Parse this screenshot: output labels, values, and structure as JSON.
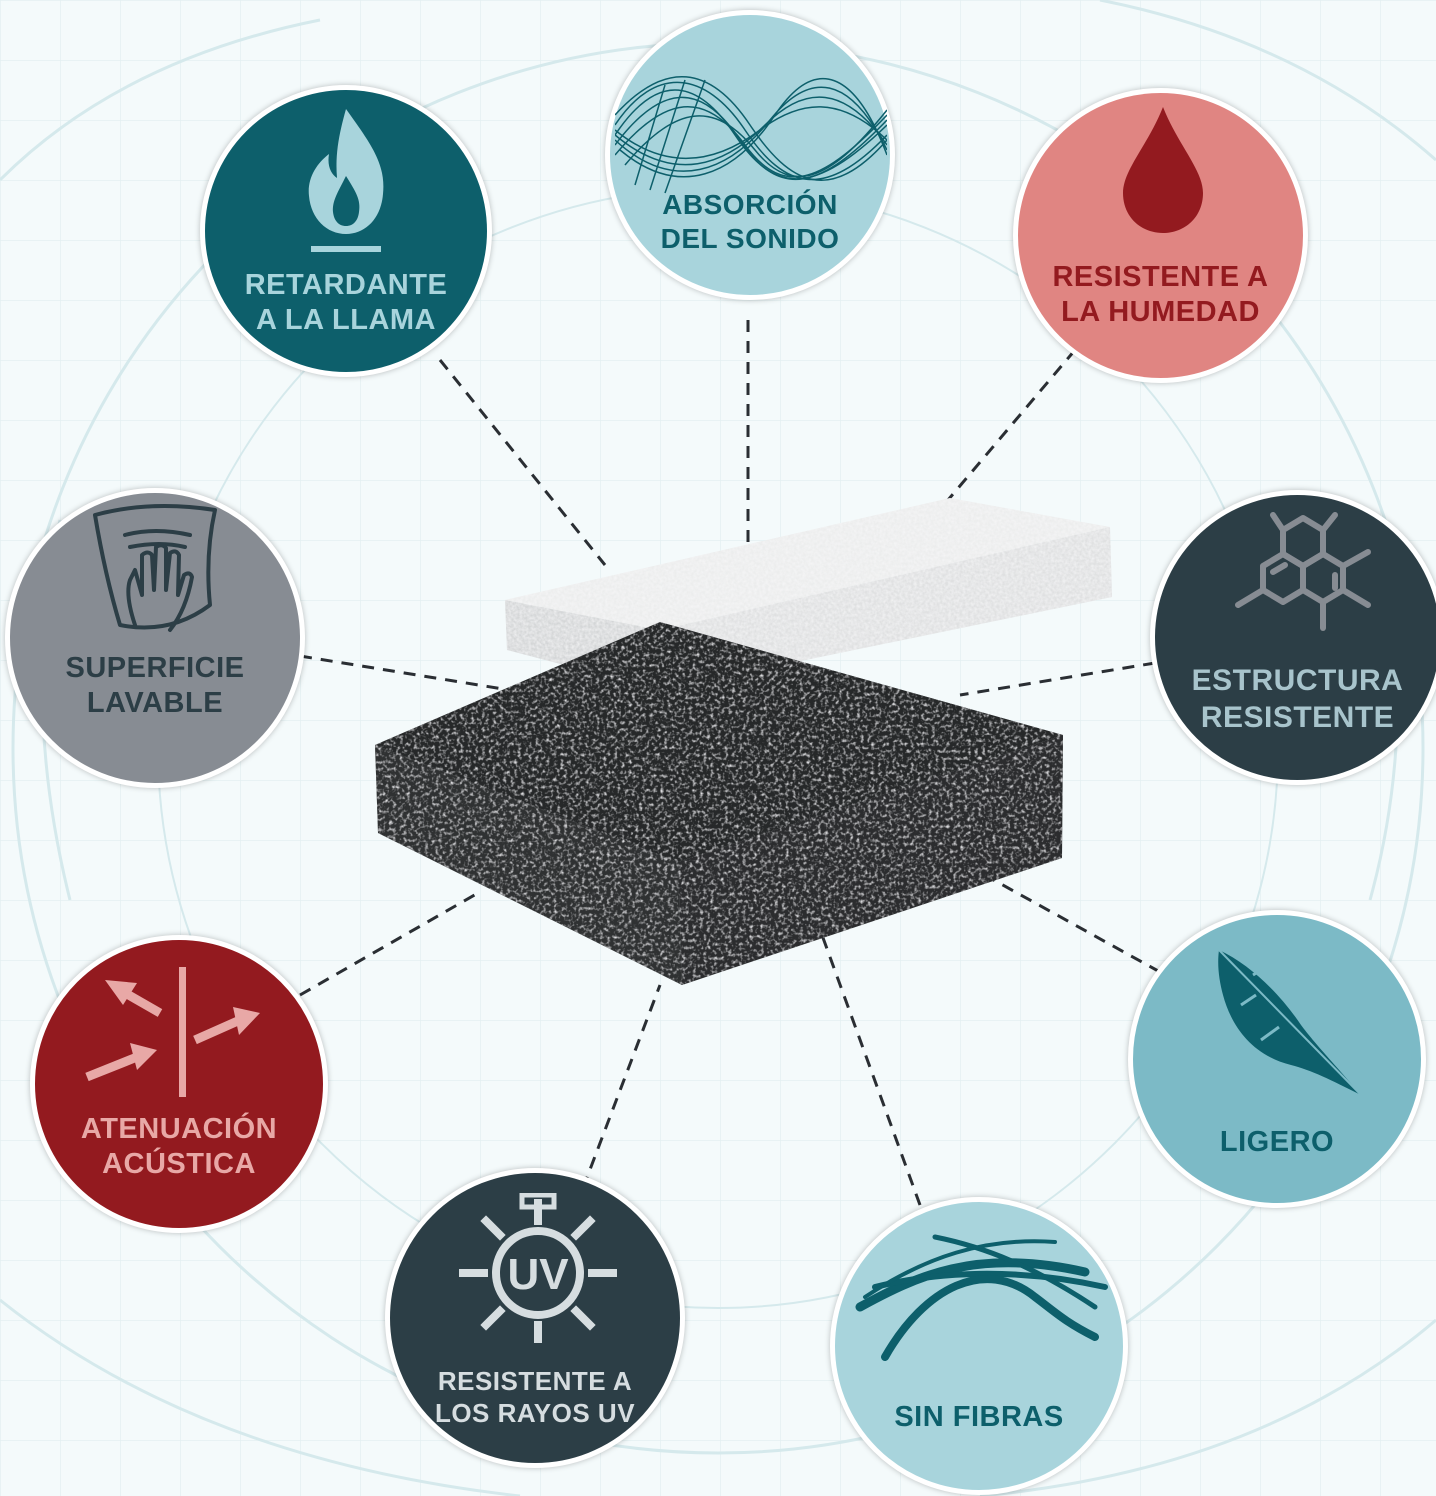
{
  "colors": {
    "teal_dark": "#0d5f6b",
    "teal_light": "#a8d4dc",
    "pink": "#e08582",
    "grey": "#878c93",
    "slate": "#2c3e46",
    "red": "#931a1f",
    "teal_mid": "#7cbac6",
    "white": "#ffffff"
  },
  "features": [
    {
      "id": "retardante",
      "icon": "flame-icon",
      "lines": [
        "RETARDANTE",
        "A LA LLAMA"
      ]
    },
    {
      "id": "absorcion",
      "icon": "sound-wave-icon",
      "lines": [
        "ABSORCIÓN",
        "DEL SONIDO"
      ]
    },
    {
      "id": "humedad",
      "icon": "water-drop-icon",
      "lines": [
        "RESISTENTE A",
        "LA HUMEDAD"
      ]
    },
    {
      "id": "lavable",
      "icon": "hand-wipe-icon",
      "lines": [
        "SUPERFICIE",
        "LAVABLE"
      ]
    },
    {
      "id": "estructura",
      "icon": "molecule-icon",
      "lines": [
        "ESTRUCTURA",
        "RESISTENTE"
      ]
    },
    {
      "id": "atenuacion",
      "icon": "arrows-wall-icon",
      "lines": [
        "ATENUACIÓN",
        "ACÚSTICA"
      ]
    },
    {
      "id": "ligero",
      "icon": "feather-icon",
      "lines": [
        "LIGERO"
      ]
    },
    {
      "id": "uv",
      "icon": "uv-sun-icon",
      "lines": [
        "RESISTENTE A",
        "LOS RAYOS UV"
      ]
    },
    {
      "id": "fibras",
      "icon": "fibers-icon",
      "lines": [
        "SIN FIBRAS"
      ]
    }
  ]
}
